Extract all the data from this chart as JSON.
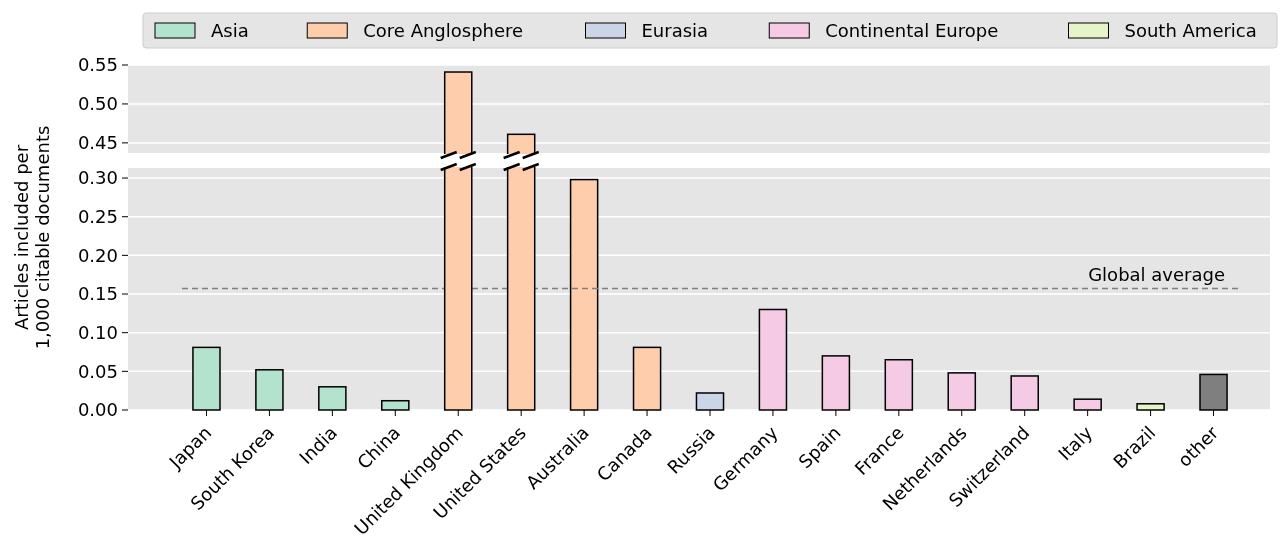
{
  "chart_data": [
    {
      "type": "bar",
      "series": [
        {
          "name": "Asia",
          "color": "#b3e2cd",
          "values": [
            null,
            null,
            null,
            null,
            null,
            null,
            null,
            null,
            null,
            null,
            null,
            null,
            null,
            null,
            null,
            null,
            null
          ]
        },
        {
          "name": "Core Anglosphere",
          "color": "#fdcdac",
          "values": [
            null,
            null,
            null,
            null,
            0.541,
            0.461,
            null,
            null,
            null,
            null,
            null,
            null,
            null,
            null,
            null,
            null,
            null
          ]
        },
        {
          "name": "Eurasia",
          "color": "#cbd5e8",
          "values": [
            null,
            null,
            null,
            null,
            null,
            null,
            null,
            null,
            null,
            null,
            null,
            null,
            null,
            null,
            null,
            null,
            null
          ]
        },
        {
          "name": "Continental Europe",
          "color": "#f4cae4",
          "values": [
            null,
            null,
            null,
            null,
            null,
            null,
            null,
            null,
            null,
            null,
            null,
            null,
            null,
            null,
            null,
            null,
            null
          ]
        },
        {
          "name": "South America",
          "color": "#e6f5c9",
          "values": [
            null,
            null,
            null,
            null,
            null,
            null,
            null,
            null,
            null,
            null,
            null,
            null,
            null,
            null,
            null,
            null,
            null
          ]
        }
      ],
      "ylim": [
        0.437,
        0.55
      ],
      "yticks": [
        {
          "value": 0.45,
          "label": "0.45"
        },
        {
          "value": 0.5,
          "label": "0.50"
        },
        {
          "value": 0.55,
          "label": "0.55"
        }
      ],
      "grid": "y",
      "legend": "top",
      "tick_labels": "y"
    },
    {
      "type": "bar",
      "categories": [
        "Japan",
        "South Korea",
        "India",
        "China",
        "United Kingdom",
        "United States",
        "Australia",
        "Canada",
        "Russia",
        "Germany",
        "Spain",
        "France",
        "Netherlands",
        "Switzerland",
        "Italy",
        "Brazil",
        "other"
      ],
      "series": [
        {
          "color": "#b3e2cd",
          "values": [
            0.081,
            0.052,
            0.03,
            0.012,
            null,
            null,
            null,
            null,
            null,
            null,
            null,
            null,
            null,
            null,
            null,
            null,
            null
          ]
        },
        {
          "color": "#fdcdac",
          "values": [
            null,
            null,
            null,
            null,
            null,
            null,
            0.298,
            0.081,
            null,
            null,
            null,
            null,
            null,
            null,
            null,
            null,
            null
          ]
        },
        {
          "color": "#cbd5e8",
          "values": [
            null,
            null,
            null,
            null,
            null,
            null,
            null,
            null,
            0.022,
            null,
            null,
            null,
            null,
            null,
            null,
            null,
            null
          ]
        },
        {
          "color": "#f4cae4",
          "values": [
            null,
            null,
            null,
            null,
            null,
            null,
            null,
            null,
            null,
            0.13,
            0.07,
            0.065,
            0.048,
            0.044,
            0.014,
            null,
            null
          ]
        },
        {
          "color": "#e6f5c9",
          "values": [
            null,
            null,
            null,
            null,
            null,
            null,
            null,
            null,
            null,
            null,
            null,
            null,
            null,
            null,
            null,
            0.008,
            null
          ]
        },
        {
          "color": "#7f7f7f",
          "values": [
            null,
            null,
            null,
            null,
            null,
            null,
            null,
            null,
            null,
            null,
            null,
            null,
            null,
            null,
            null,
            null,
            0.046
          ]
        }
      ],
      "ylim": [
        0,
        0.313
      ],
      "yticks": [
        {
          "value": 0,
          "label": "0.00"
        },
        {
          "value": 0.05,
          "label": "0.05"
        },
        {
          "value": 0.1,
          "label": "0.10"
        },
        {
          "value": 0.15,
          "label": "0.15"
        },
        {
          "value": 0.2,
          "label": "0.20"
        },
        {
          "value": 0.25,
          "label": "0.25"
        },
        {
          "value": 0.3,
          "label": "0.30"
        }
      ],
      "grid": "y",
      "ylabel": "Articles included per\n1,000 citable documents",
      "ref_lines": [
        {
          "axis": "y",
          "value": 0.157,
          "label": "Global average",
          "color": "#808080",
          "line_style": "dashed"
        }
      ]
    }
  ]
}
